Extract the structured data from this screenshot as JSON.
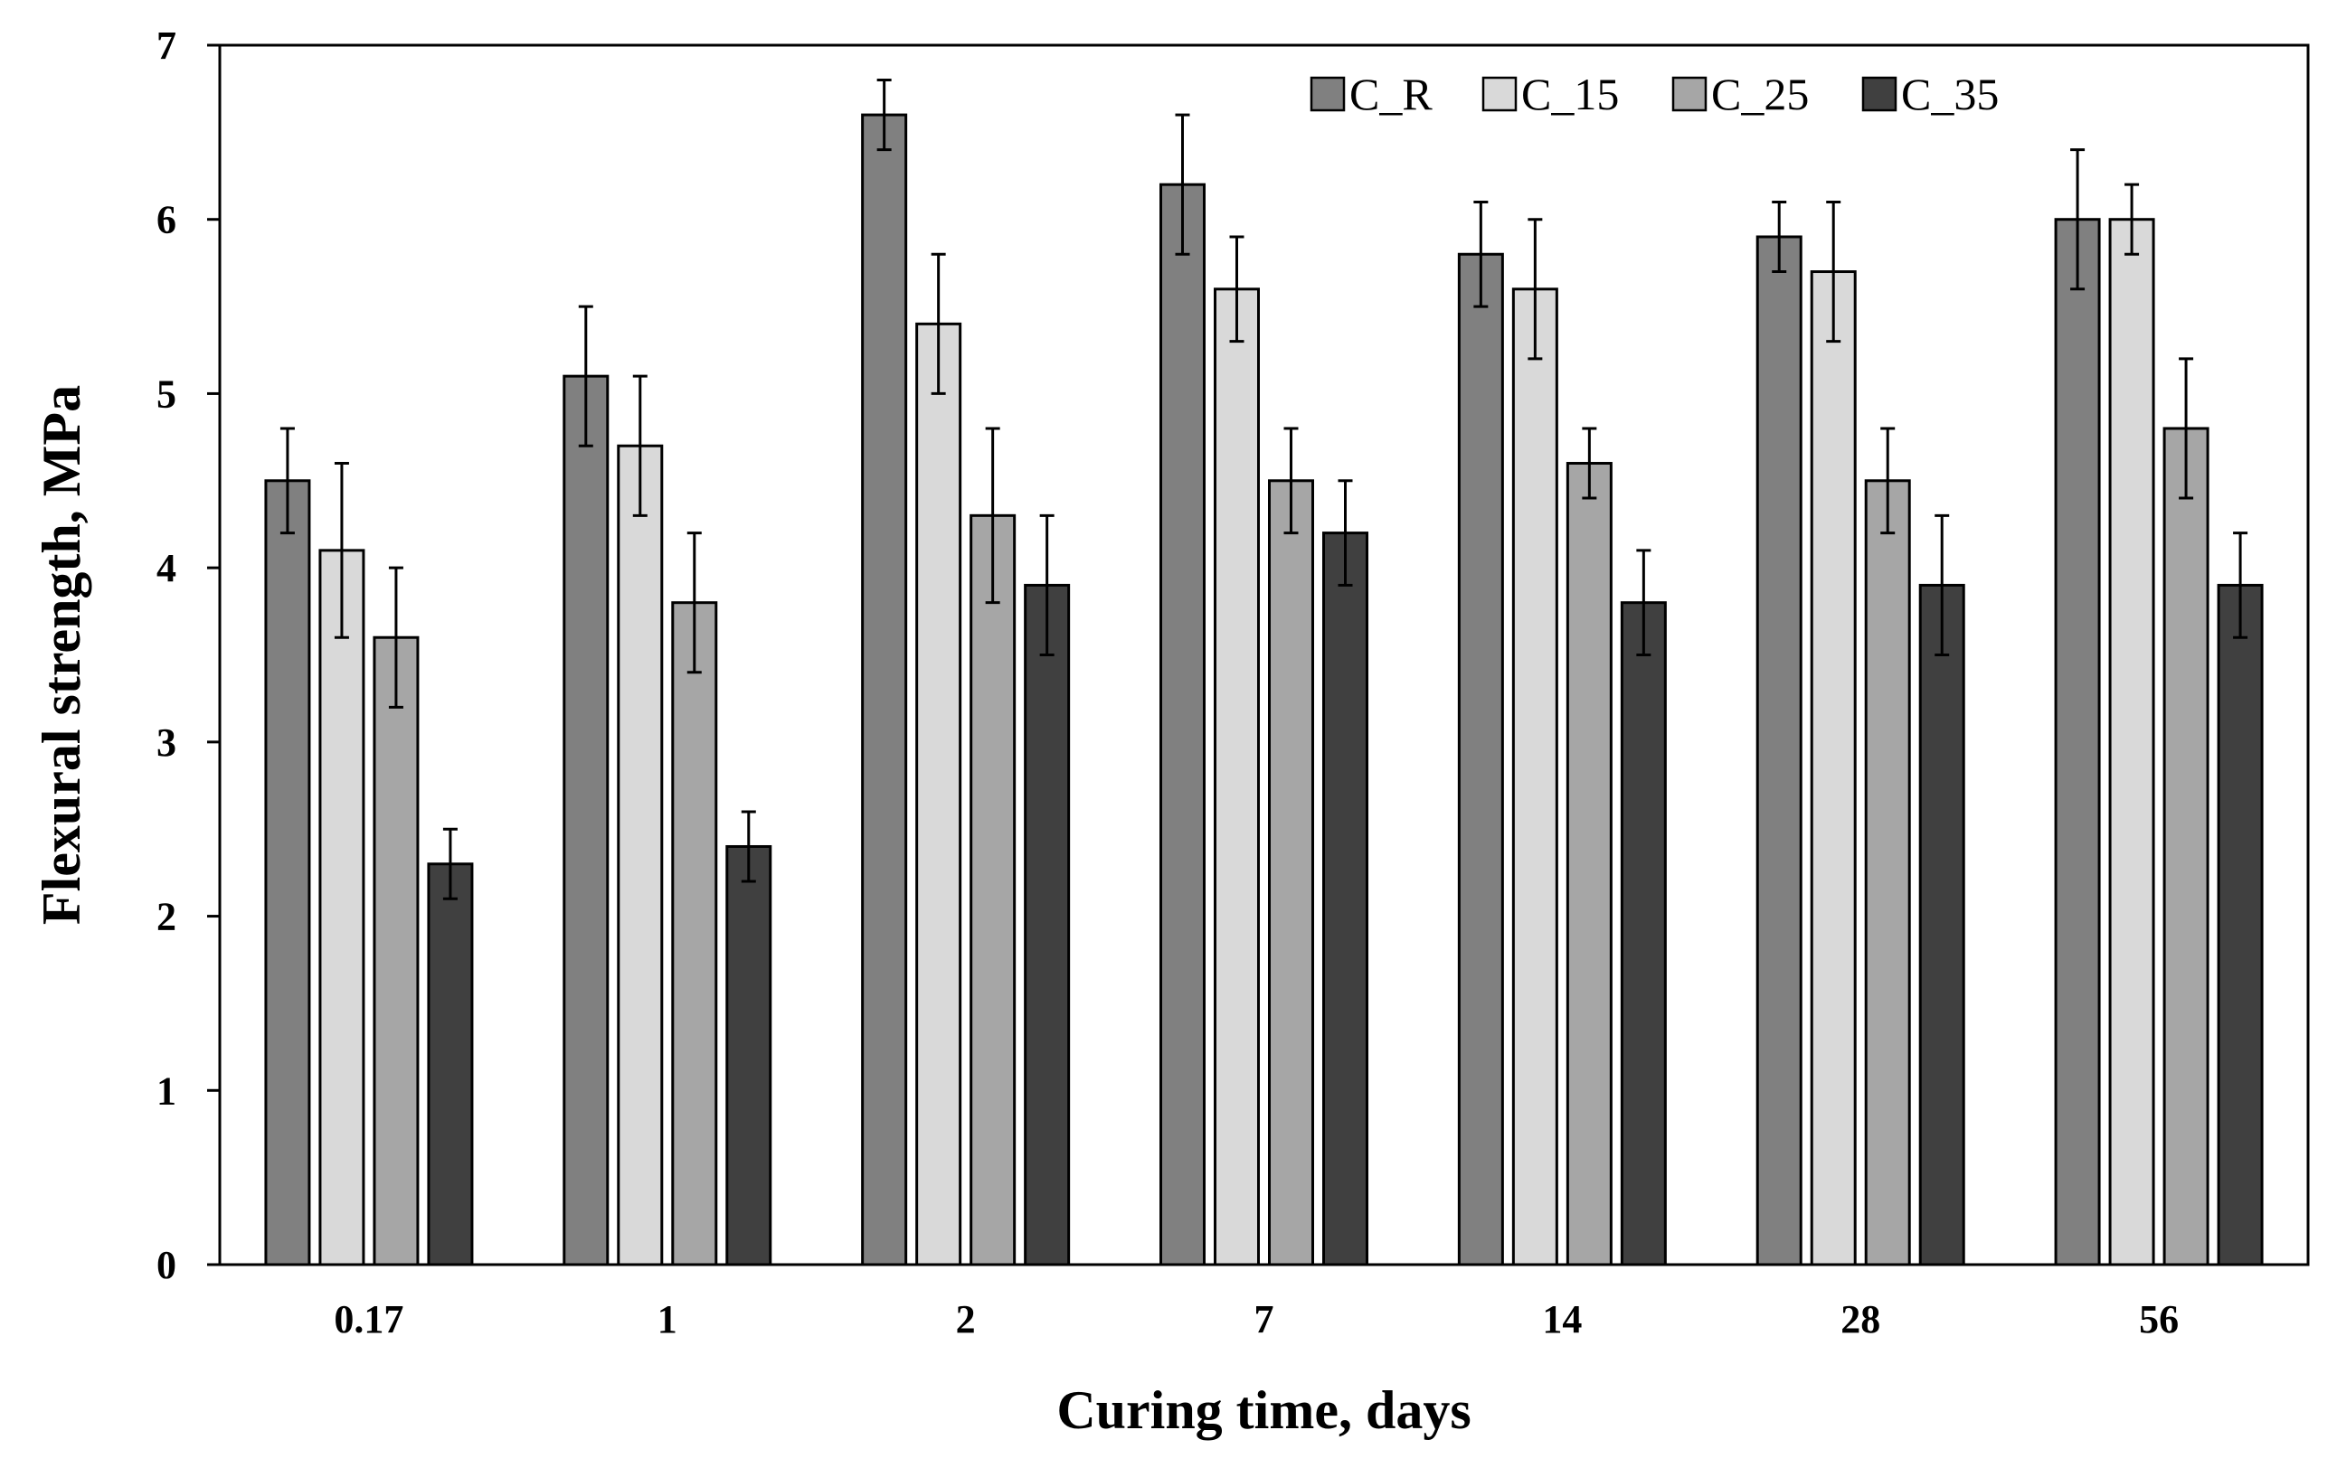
{
  "chart_data": {
    "type": "bar",
    "xlabel": "Curing time, days",
    "ylabel": "Flexural strength, MPa",
    "ylim": [
      0,
      7
    ],
    "yticks": [
      "0",
      "1",
      "2",
      "3",
      "4",
      "5",
      "6",
      "7"
    ],
    "categories": [
      "0.17",
      "1",
      "2",
      "7",
      "14",
      "28",
      "56"
    ],
    "legend_position": "top-right",
    "grid": false,
    "series": [
      {
        "name": "C_R",
        "color": "#808080",
        "values": [
          4.5,
          5.1,
          6.6,
          6.2,
          5.8,
          5.9,
          6.0
        ],
        "errors": [
          0.3,
          0.4,
          0.2,
          0.4,
          0.3,
          0.2,
          0.4
        ]
      },
      {
        "name": "C_15",
        "color": "#d9d9d9",
        "values": [
          4.1,
          4.7,
          5.4,
          5.6,
          5.6,
          5.7,
          6.0
        ],
        "errors": [
          0.5,
          0.4,
          0.4,
          0.3,
          0.4,
          0.4,
          0.2
        ]
      },
      {
        "name": "C_25",
        "color": "#a6a6a6",
        "values": [
          3.6,
          3.8,
          4.3,
          4.5,
          4.6,
          4.5,
          4.8
        ],
        "errors": [
          0.4,
          0.4,
          0.5,
          0.3,
          0.2,
          0.3,
          0.4
        ]
      },
      {
        "name": "C_35",
        "color": "#404040",
        "values": [
          2.3,
          2.4,
          3.9,
          4.2,
          3.8,
          3.9,
          3.9
        ],
        "errors": [
          0.2,
          0.2,
          0.4,
          0.3,
          0.3,
          0.4,
          0.3
        ]
      }
    ]
  }
}
